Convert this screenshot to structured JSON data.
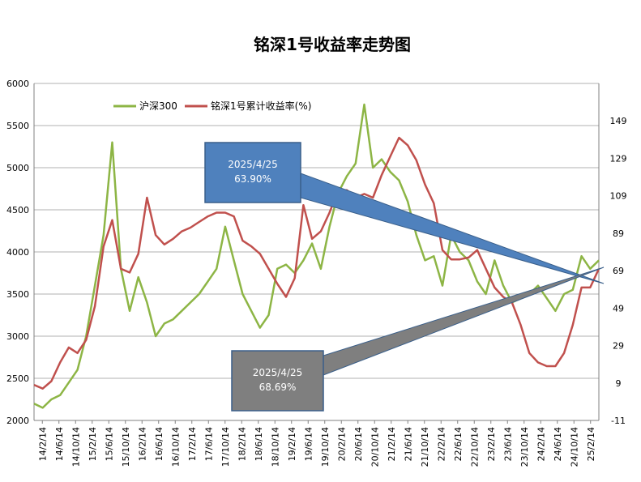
{
  "chart_data": {
    "type": "line",
    "title": "铭深1号收益率走势图",
    "legend_placement": "top-left",
    "grid": true,
    "y_left": {
      "ticks": [
        2000,
        2500,
        3000,
        3500,
        4000,
        4500,
        5000,
        5500,
        6000
      ],
      "ylim": [
        2000,
        6000
      ]
    },
    "y_right": {
      "ticks": [
        "-11",
        "9",
        "29",
        "49",
        "69",
        "89",
        "109",
        "129",
        "149"
      ],
      "ylim": [
        -11,
        169
      ]
    },
    "x_ticks": [
      "14/2/14",
      "14/6/14",
      "14/10/14",
      "15/2/14",
      "15/6/14",
      "15/10/14",
      "16/2/14",
      "16/6/14",
      "16/10/14",
      "17/2/14",
      "17/6/14",
      "17/10/14",
      "18/2/14",
      "18/6/14",
      "18/10/14",
      "19/2/14",
      "19/6/14",
      "19/10/14",
      "20/2/14",
      "20/6/14",
      "20/10/14",
      "21/2/14",
      "21/6/14",
      "21/10/14",
      "22/2/14",
      "22/6/14",
      "22/10/14",
      "23/2/14",
      "23/6/14",
      "23/10/14",
      "24/2/14",
      "24/6/14",
      "24/10/14",
      "25/2/14"
    ],
    "series": [
      {
        "name": "沪深300",
        "color": "#8db545",
        "axis": "left",
        "values": [
          2200,
          2150,
          2250,
          2300,
          2450,
          2600,
          3000,
          3600,
          4200,
          5300,
          3800,
          3300,
          3700,
          3400,
          3000,
          3150,
          3200,
          3300,
          3400,
          3500,
          3650,
          3800,
          4300,
          3900,
          3500,
          3300,
          3100,
          3250,
          3800,
          3850,
          3750,
          3900,
          4100,
          3800,
          4300,
          4700,
          4900,
          5050,
          5750,
          5000,
          5100,
          4950,
          4850,
          4600,
          4200,
          3900,
          3950,
          3600,
          4200,
          4000,
          3900,
          3650,
          3500,
          3900,
          3600,
          3400,
          3450,
          3500,
          3600,
          3450,
          3300,
          3500,
          3550,
          3950,
          3800,
          3900
        ]
      },
      {
        "name": "铭深1号累计收益率(%)",
        "color": "#c0504d",
        "axis": "right",
        "values": [
          8,
          6,
          10,
          20,
          28,
          25,
          32,
          50,
          82,
          96,
          70,
          68,
          78,
          108,
          88,
          83,
          86,
          90,
          92,
          95,
          98,
          100,
          100,
          98,
          85,
          82,
          78,
          70,
          62,
          55,
          65,
          104,
          86,
          90,
          100,
          112,
          112,
          108,
          110,
          108,
          120,
          130,
          140,
          136,
          128,
          115,
          105,
          80,
          75,
          75,
          76,
          80,
          70,
          60,
          55,
          52,
          40,
          25,
          20,
          18,
          18,
          25,
          40,
          60,
          60,
          70
        ]
      }
    ],
    "annotations": [
      {
        "date": "2025/4/25",
        "value": "63.90%",
        "box_color": "#4f81bd",
        "target_axis": "right",
        "target_value": 63.9
      },
      {
        "date": "2025/4/25",
        "value": "68.69%",
        "box_color": "#7f7f7f",
        "target_axis": "right",
        "target_value": 68.69
      }
    ]
  }
}
